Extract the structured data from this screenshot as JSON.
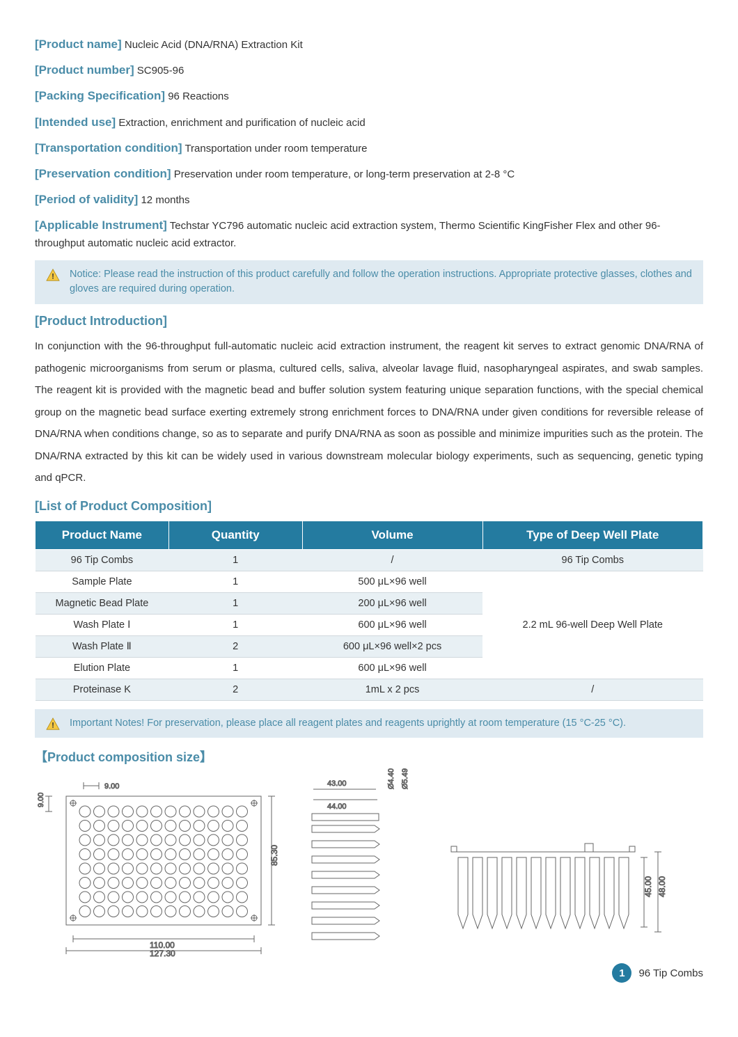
{
  "fields": {
    "product_name": {
      "label": "[Product name]",
      "value": "Nucleic Acid (DNA/RNA) Extraction Kit"
    },
    "product_number": {
      "label": "[Product number]",
      "value": "SC905-96"
    },
    "packing_spec": {
      "label": "[Packing Specification]",
      "value": "96 Reactions"
    },
    "intended_use": {
      "label": "[Intended use]",
      "value": "Extraction, enrichment and purification of nucleic acid"
    },
    "transport": {
      "label": "[Transportation condition]",
      "value": "Transportation under room temperature"
    },
    "preservation": {
      "label": "[Preservation condition]",
      "value": "Preservation under room temperature, or long-term preservation at 2-8 °C"
    },
    "validity": {
      "label": "[Period of validity]",
      "value": "12 months"
    },
    "instrument": {
      "label": "[Applicable Instrument]",
      "value": "Techstar YC796 automatic nucleic acid extraction system, Thermo Scientific KingFisher Flex and other 96-throughput automatic nucleic acid extractor."
    }
  },
  "notice_top": "Notice: Please read the instruction of this product carefully and follow the operation instructions. Appropriate protective glasses, clothes and gloves are required during operation.",
  "section_intro_heading": "[Product Introduction]",
  "intro_text": "In conjunction with the 96-throughput full-automatic nucleic acid extraction instrument, the reagent kit serves to extract genomic DNA/RNA of pathogenic microorganisms from serum or plasma, cultured cells, saliva, alveolar lavage fluid, nasopharyngeal aspirates, and swab samples. The reagent kit is provided with the magnetic bead and buffer solution system featuring unique separation functions, with the special chemical group on the magnetic bead surface exerting extremely strong enrichment forces to DNA/RNA under given conditions for reversible release of DNA/RNA when conditions change, so as to separate and purify DNA/RNA as soon as possible and minimize impurities such as the protein. The DNA/RNA extracted by this kit can be widely used in various downstream molecular biology experiments, such as sequencing, genetic typing and qPCR.",
  "section_composition_heading": "[List of Product Composition]",
  "table": {
    "headers": [
      "Product Name",
      "Quantity",
      "Volume",
      "Type of Deep Well Plate"
    ],
    "rows": [
      {
        "name": "96 Tip Combs",
        "qty": "1",
        "vol": "/",
        "plate": "96 Tip Combs"
      },
      {
        "name": "Sample Plate",
        "qty": "1",
        "vol": "500 μL×96 well"
      },
      {
        "name": "Magnetic Bead Plate",
        "qty": "1",
        "vol": "200 μL×96 well"
      },
      {
        "name": "Wash Plate Ⅰ",
        "qty": "1",
        "vol": "600 μL×96 well"
      },
      {
        "name": "Wash Plate Ⅱ",
        "qty": "2",
        "vol": "600 μL×96 well×2 pcs"
      },
      {
        "name": "Elution Plate",
        "qty": "1",
        "vol": "600 μL×96 well"
      },
      {
        "name": "Proteinase K",
        "qty": "2",
        "vol": "1mL x 2 pcs",
        "plate": "/"
      }
    ],
    "merged_plate_label": "2.2 mL 96-well Deep Well Plate"
  },
  "notice_bottom": "Important Notes! For preservation, please place all reagent plates and reagents uprightly at room temperature (15 °C-25 °C).",
  "section_size_heading": "【Product composition size】",
  "diagram_dims": {
    "top_view": {
      "w": "9.00",
      "wtop": "9.00",
      "h": "85.30",
      "outer_w": "110.00",
      "full_w": "127.30"
    },
    "side_view": {
      "w1": "43.00",
      "w2": "44.00",
      "d1": "Ø4.40",
      "d2": "Ø5.49"
    },
    "front_view": {
      "h1": "45.00",
      "h2": "48.00"
    }
  },
  "footer": {
    "page": "1",
    "label": "96 Tip Combs"
  },
  "colors": {
    "accent": "#4a8ca8",
    "table_header_bg": "#247ba0",
    "notice_bg": "#dfeaf1",
    "row_alt": "#e8f0f4",
    "warn_yellow": "#f5c842",
    "text": "#333333",
    "diagram_stroke": "#666666"
  }
}
